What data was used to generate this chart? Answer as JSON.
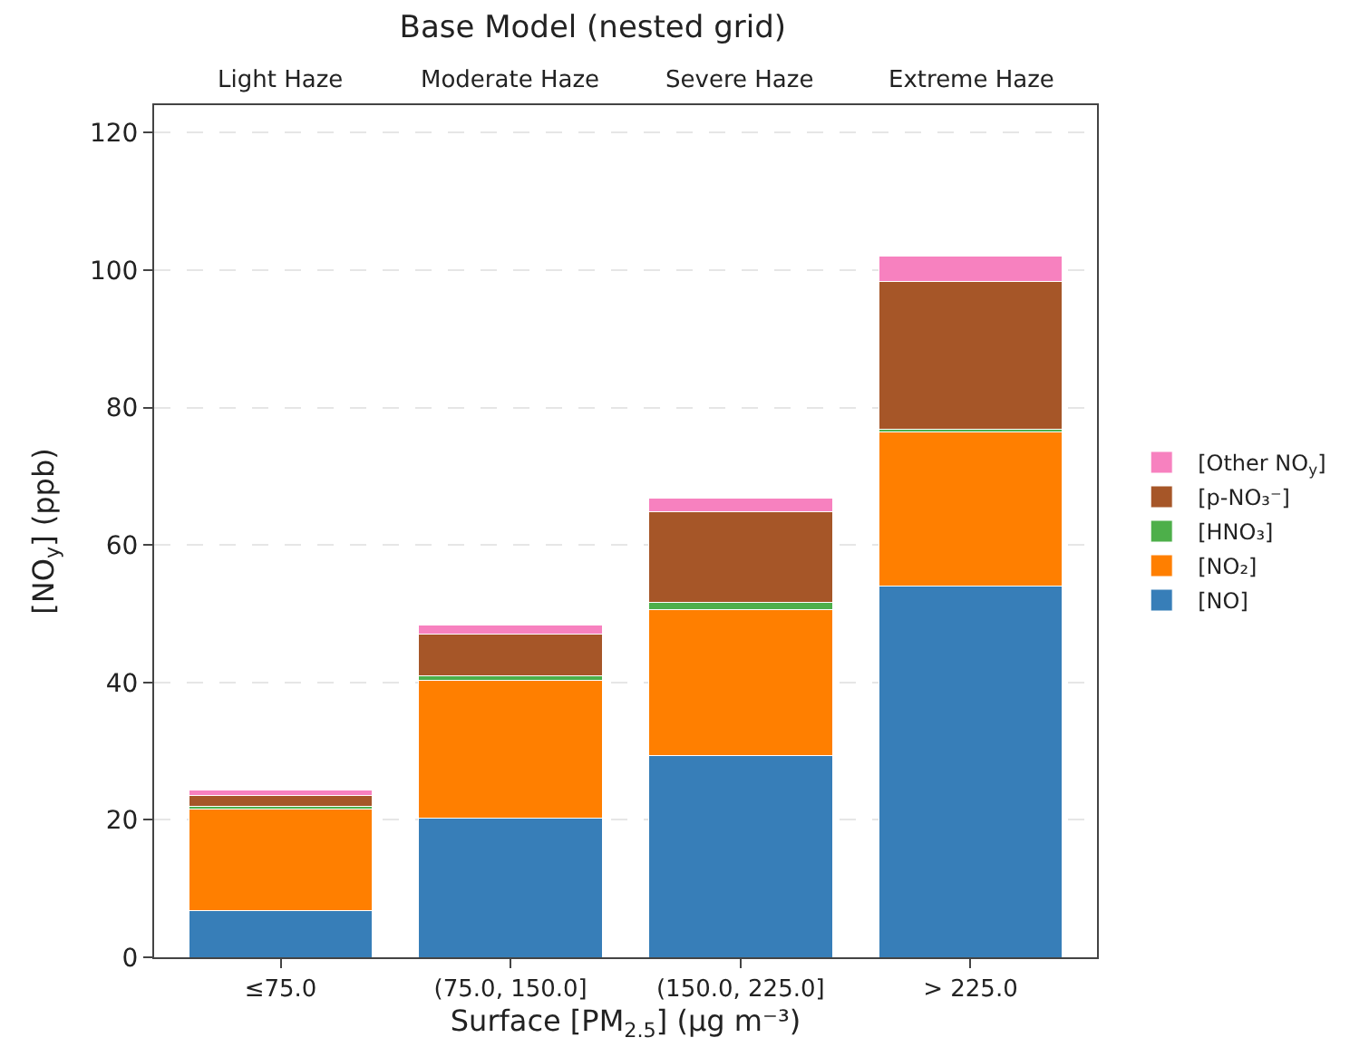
{
  "chart_data": {
    "type": "bar",
    "title": "Base Model (nested grid)",
    "xlabel": "Surface [PM$_{2.5}$] (μg m⁻³)",
    "ylabel": "[NO$_{y}$] (ppb)",
    "categories": [
      "≤75.0",
      "(75.0, 150.0]",
      "(150.0, 225.0]",
      "> 225.0"
    ],
    "annotations": [
      "Light Haze",
      "Moderate Haze",
      "Severe Haze",
      "Extreme Haze"
    ],
    "stacked": true,
    "series": [
      {
        "name": "[NO]",
        "color": "#377eb8",
        "values": [
          6.8,
          20.3,
          29.4,
          54.0
        ]
      },
      {
        "name": "[NO₂]",
        "color": "#ff7f00",
        "values": [
          14.8,
          20.0,
          21.2,
          22.4
        ]
      },
      {
        "name": "[HNO₃]",
        "color": "#4daf4a",
        "values": [
          0.3,
          0.7,
          1.1,
          0.5
        ]
      },
      {
        "name": "[p-NO₃⁻]",
        "color": "#a65628",
        "values": [
          1.7,
          6.0,
          13.2,
          21.5
        ]
      },
      {
        "name": "[Other NO$_{y}$]",
        "color": "#f781bf",
        "values": [
          0.8,
          1.3,
          1.9,
          3.7
        ]
      }
    ],
    "ylim": [
      0,
      124
    ],
    "yticks": [
      0,
      20,
      40,
      60,
      80,
      100,
      120
    ],
    "grid": "y",
    "legend": "right"
  }
}
